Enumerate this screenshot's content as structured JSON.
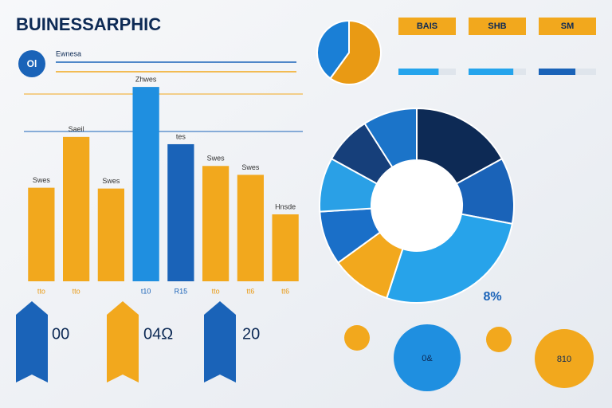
{
  "header": {
    "title": "BUINESSARPHIC",
    "badge": "Ol",
    "subtitle": "Ewnesa"
  },
  "chart_data": [
    {
      "type": "bar",
      "categories": [
        "tto",
        "tto",
        null,
        "t10",
        "R15",
        "tto",
        "tt6",
        "tt6"
      ],
      "values": [
        116,
        179,
        115,
        241,
        170,
        143,
        132,
        83
      ],
      "colors": [
        "#f2a81d",
        "#f2a81d",
        "#f2a81d",
        "#1f8fe0",
        "#1a63b8",
        "#f2a81d",
        "#f2a81d",
        "#f2a81d"
      ],
      "bar_labels": [
        "Swes",
        "Saeil",
        "Swes",
        "Zhwes",
        "tes",
        "Swes",
        "Swes",
        "Hnsde"
      ],
      "ylim": [
        0,
        250
      ]
    },
    {
      "type": "pie",
      "donut": true,
      "center_label": "8%",
      "values": [
        17,
        11,
        27,
        10,
        9,
        9,
        8,
        9
      ],
      "colors": [
        "#0d2a55",
        "#1a63b8",
        "#27a3ea",
        "#f2a81d",
        "#1a6fc8",
        "#2aa0e6",
        "#163f7a",
        "#1b74c9"
      ]
    },
    {
      "type": "pie",
      "donut": false,
      "values": [
        60,
        40
      ],
      "colors": [
        "#e99a14",
        "#1a7fd6"
      ]
    },
    {
      "type": "hbar",
      "categories": [
        "BAIS",
        "SHB",
        "SM"
      ],
      "values": [
        70,
        78,
        64
      ],
      "colors": [
        "#25a4ec",
        "#25a4ec",
        "#1a63b8"
      ],
      "xlim": [
        0,
        100
      ]
    }
  ],
  "footer": {
    "stats": [
      "00",
      "04Ω",
      "20"
    ],
    "circles": [
      "0&",
      "810"
    ]
  }
}
